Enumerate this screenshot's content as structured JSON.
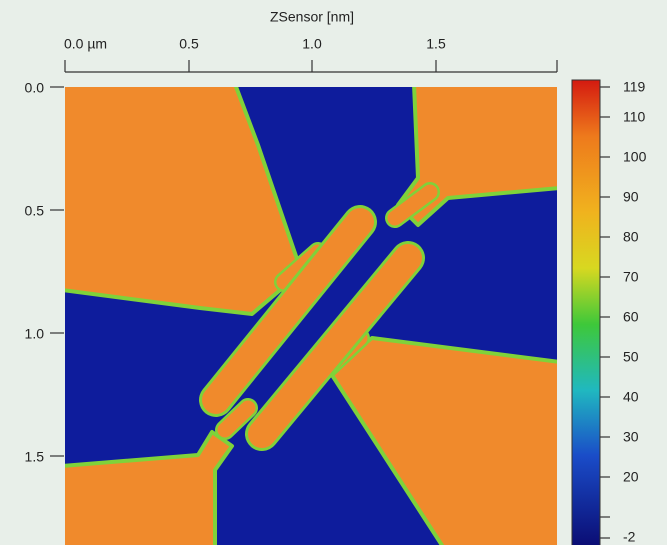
{
  "title": "ZSensor [nm]",
  "x_axis": {
    "ticks": [
      "0.0 µm",
      "0.5",
      "1.0",
      "1.5"
    ]
  },
  "y_axis": {
    "ticks": [
      "0.0",
      "0.5",
      "1.0",
      "1.5"
    ]
  },
  "colorbar": {
    "ticks": [
      "119",
      "110",
      "100",
      "90",
      "80",
      "70",
      "60",
      "50",
      "40",
      "30",
      "20",
      "-2"
    ]
  }
}
